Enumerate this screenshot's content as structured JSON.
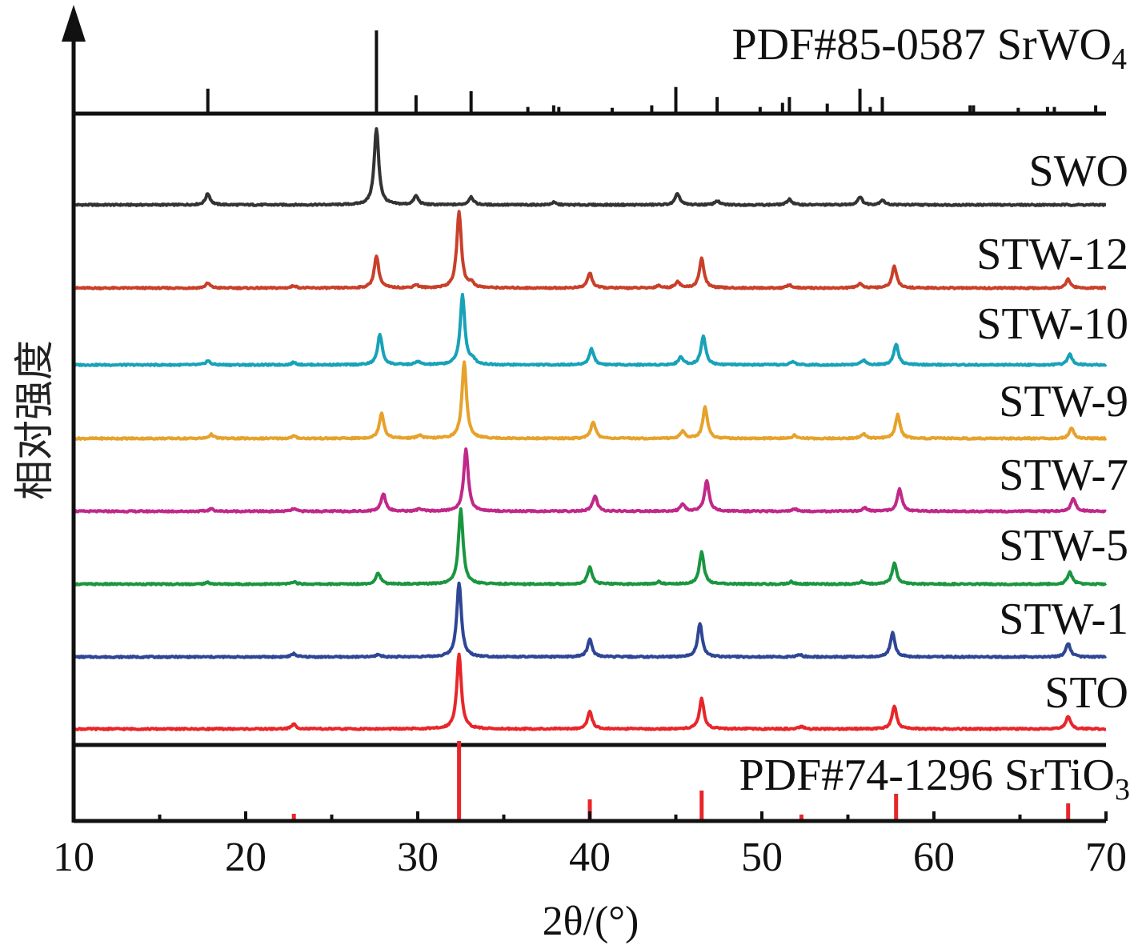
{
  "chart_data": {
    "type": "line",
    "title": "",
    "xlabel": "2θ/(°)",
    "ylabel": "相对强度",
    "xlim": [
      10,
      70
    ],
    "xticks": [
      "10",
      "20",
      "30",
      "40",
      "50",
      "60",
      "70"
    ],
    "grid": false,
    "legend": "none",
    "reference_top": {
      "name": "PDF#85-0587 SrWO4",
      "name_main": "PDF#85-0587 SrWO",
      "name_sub": "4",
      "color": "#111111",
      "peaks": [
        [
          17.8,
          0.3
        ],
        [
          27.6,
          1.0
        ],
        [
          29.9,
          0.22
        ],
        [
          33.1,
          0.27
        ],
        [
          36.4,
          0.08
        ],
        [
          37.9,
          0.1
        ],
        [
          38.2,
          0.08
        ],
        [
          41.3,
          0.07
        ],
        [
          43.6,
          0.1
        ],
        [
          45.0,
          0.32
        ],
        [
          47.4,
          0.2
        ],
        [
          49.9,
          0.08
        ],
        [
          51.2,
          0.13
        ],
        [
          51.6,
          0.2
        ],
        [
          53.8,
          0.12
        ],
        [
          55.7,
          0.3
        ],
        [
          56.3,
          0.08
        ],
        [
          57.0,
          0.2
        ],
        [
          62.1,
          0.1
        ],
        [
          62.3,
          0.1
        ],
        [
          64.9,
          0.07
        ],
        [
          66.6,
          0.08
        ],
        [
          67.0,
          0.08
        ],
        [
          69.4,
          0.1
        ]
      ]
    },
    "reference_bottom": {
      "name": "PDF#74-1296 SrTiO3",
      "name_main": "PDF#74-1296 SrTiO",
      "name_sub": "3",
      "color": "#e8262a",
      "peaks": [
        [
          22.8,
          0.09
        ],
        [
          32.4,
          1.0
        ],
        [
          40.0,
          0.27
        ],
        [
          46.5,
          0.38
        ],
        [
          52.3,
          0.08
        ],
        [
          57.8,
          0.34
        ],
        [
          67.8,
          0.22
        ]
      ]
    },
    "series": [
      {
        "name": "SWO",
        "color": "#333333",
        "peaks": [
          [
            17.8,
            0.14
          ],
          [
            27.6,
            0.95
          ],
          [
            29.9,
            0.11
          ],
          [
            33.1,
            0.1
          ],
          [
            37.9,
            0.03
          ],
          [
            45.1,
            0.14
          ],
          [
            47.4,
            0.05
          ],
          [
            51.6,
            0.07
          ],
          [
            55.7,
            0.1
          ],
          [
            57.0,
            0.06
          ]
        ]
      },
      {
        "name": "STW-12",
        "color": "#c8402a",
        "peaks": [
          [
            17.8,
            0.06
          ],
          [
            22.8,
            0.03
          ],
          [
            27.6,
            0.4
          ],
          [
            29.9,
            0.04
          ],
          [
            32.4,
            0.95
          ],
          [
            33.1,
            0.06
          ],
          [
            40.0,
            0.19
          ],
          [
            44.0,
            0.03
          ],
          [
            45.1,
            0.08
          ],
          [
            46.5,
            0.37
          ],
          [
            51.6,
            0.04
          ],
          [
            55.7,
            0.06
          ],
          [
            57.7,
            0.27
          ],
          [
            67.8,
            0.11
          ]
        ]
      },
      {
        "name": "STW-10",
        "color": "#17a2b8",
        "peaks": [
          [
            17.8,
            0.05
          ],
          [
            22.8,
            0.03
          ],
          [
            27.8,
            0.38
          ],
          [
            30.0,
            0.04
          ],
          [
            32.6,
            0.87
          ],
          [
            33.2,
            0.06
          ],
          [
            40.1,
            0.2
          ],
          [
            45.3,
            0.1
          ],
          [
            46.6,
            0.36
          ],
          [
            51.8,
            0.04
          ],
          [
            55.9,
            0.06
          ],
          [
            57.8,
            0.26
          ],
          [
            67.9,
            0.13
          ]
        ]
      },
      {
        "name": "STW-9",
        "color": "#e6a22b",
        "peaks": [
          [
            18.0,
            0.05
          ],
          [
            22.8,
            0.03
          ],
          [
            27.9,
            0.32
          ],
          [
            30.1,
            0.04
          ],
          [
            32.7,
            0.95
          ],
          [
            40.2,
            0.21
          ],
          [
            45.4,
            0.09
          ],
          [
            46.7,
            0.39
          ],
          [
            51.9,
            0.04
          ],
          [
            55.9,
            0.06
          ],
          [
            57.9,
            0.3
          ],
          [
            68.0,
            0.13
          ]
        ]
      },
      {
        "name": "STW-7",
        "color": "#c0288a",
        "peaks": [
          [
            18.0,
            0.03
          ],
          [
            22.8,
            0.03
          ],
          [
            28.0,
            0.22
          ],
          [
            30.1,
            0.03
          ],
          [
            32.8,
            0.77
          ],
          [
            40.3,
            0.19
          ],
          [
            45.4,
            0.08
          ],
          [
            46.8,
            0.38
          ],
          [
            51.9,
            0.03
          ],
          [
            56.0,
            0.04
          ],
          [
            58.0,
            0.28
          ],
          [
            68.1,
            0.16
          ]
        ]
      },
      {
        "name": "STW-5",
        "color": "#1a9640",
        "peaks": [
          [
            17.8,
            0.02
          ],
          [
            22.8,
            0.03
          ],
          [
            27.7,
            0.14
          ],
          [
            32.5,
            0.94
          ],
          [
            40.0,
            0.21
          ],
          [
            44.0,
            0.03
          ],
          [
            46.5,
            0.4
          ],
          [
            51.7,
            0.03
          ],
          [
            55.8,
            0.03
          ],
          [
            57.7,
            0.26
          ],
          [
            67.9,
            0.15
          ]
        ]
      },
      {
        "name": "STW-1",
        "color": "#2e4694",
        "peaks": [
          [
            22.8,
            0.04
          ],
          [
            27.7,
            0.03
          ],
          [
            32.4,
            0.93
          ],
          [
            40.0,
            0.22
          ],
          [
            46.4,
            0.42
          ],
          [
            52.2,
            0.03
          ],
          [
            57.6,
            0.3
          ],
          [
            67.8,
            0.17
          ]
        ]
      },
      {
        "name": "STO",
        "color": "#e8262a",
        "peaks": [
          [
            22.8,
            0.06
          ],
          [
            32.4,
            0.93
          ],
          [
            40.0,
            0.22
          ],
          [
            46.5,
            0.38
          ],
          [
            52.3,
            0.03
          ],
          [
            57.7,
            0.28
          ],
          [
            67.8,
            0.16
          ]
        ]
      }
    ]
  }
}
